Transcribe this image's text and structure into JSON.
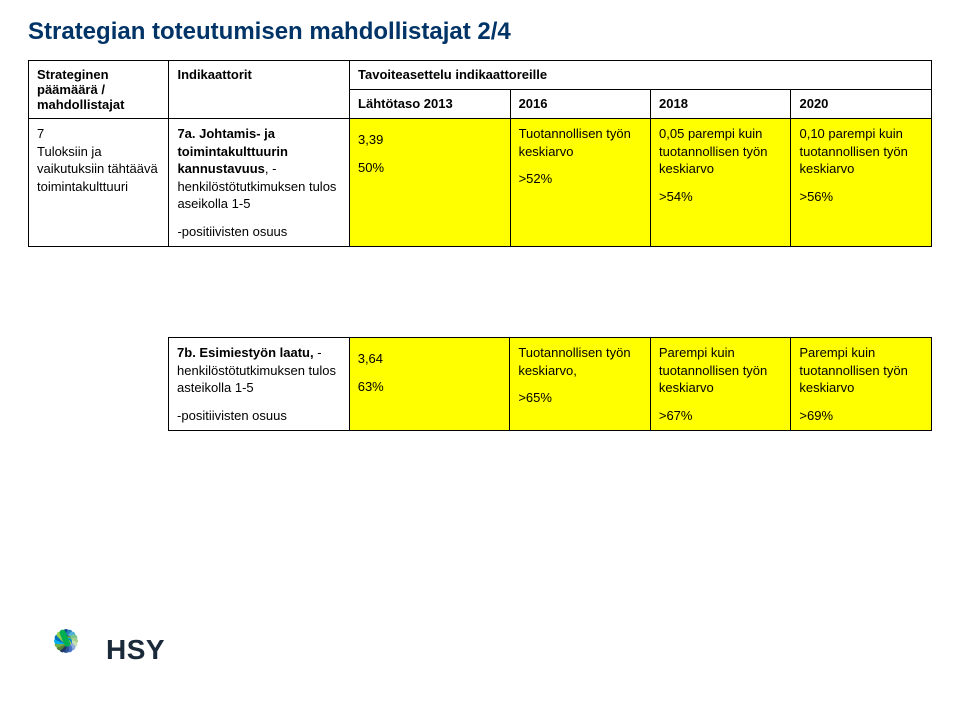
{
  "title": "Strategian toteutumisen mahdollistajat  2/4",
  "headers": {
    "strategic": "Strateginen päämäärä / mahdollistajat",
    "indicators": "Indikaattorit",
    "target": "Tavoiteasettelu indikaattoreille",
    "baseline": "Lähtötaso 2013",
    "y2016": "2016",
    "y2018": "2018",
    "y2020": "2020"
  },
  "row1": {
    "strategic_num": "7",
    "strategic_text": "Tuloksiin ja vaikutuksiin tähtäävä toimintakulttuuri",
    "indicator_label": "7a. Johtamis- ja toimintakulttuurin kannustavuus",
    "indicator_label2": ", -henkilöstötutkimuksen tulos aseikolla 1-5",
    "indicator_sub": "-positiivisten osuus",
    "lt_val": "3,39",
    "lt_sub": "50%",
    "c2016_a": "Tuotannollisen työn keskiarvo",
    "c2016_b": ">52%",
    "c2018_a": "0,05 parempi kuin tuotannollisen työn keskiarvo",
    "c2018_b": ">54%",
    "c2020_a": "0,10 parempi kuin tuotannollisen työn keskiarvo",
    "c2020_b": ">56%"
  },
  "row2": {
    "indicator_label": "7b. Esimiestyön laatu,",
    "indicator_label2": " -henkilöstötutkimuksen tulos asteikolla 1-5",
    "indicator_sub": "-positiivisten osuus",
    "lt_val": "3,64",
    "lt_sub": "63%",
    "c2016_a": "Tuotannollisen työn keskiarvo,",
    "c2016_b": ">65%",
    "c2018_a": "Parempi kuin tuotannollisen työn keskiarvo",
    "c2018_b": ">67%",
    "c2020_a": "Parempi kuin tuotannollisen työn keskiarvo",
    "c2020_b": ">69%"
  },
  "logo": {
    "text": "HSY",
    "colors": [
      "#0b4a8a",
      "#2a7fb8",
      "#4fb3d9",
      "#7cc68c",
      "#a8d08d",
      "#c5e0b4",
      "#8faadc",
      "#4472c4",
      "#2f5597",
      "#1f3864",
      "#548235",
      "#70ad47",
      "#00b0f0",
      "#0070c0",
      "#92d050",
      "#00b050"
    ]
  },
  "style": {
    "highlight": "#ffff00",
    "title_color": "#003366",
    "border_color": "#000000",
    "background": "#ffffff"
  }
}
